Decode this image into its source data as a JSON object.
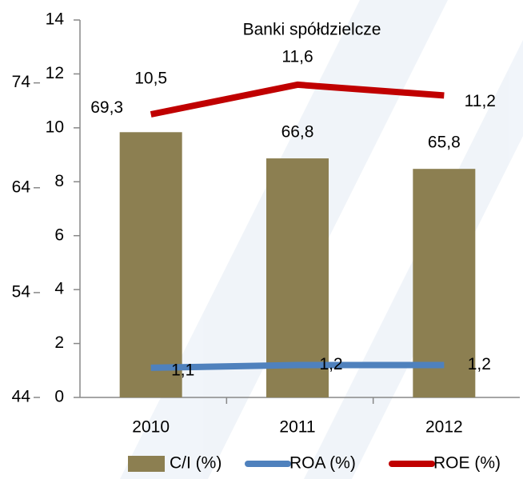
{
  "chart_data": {
    "type": "bar_line",
    "title": "Banki spółdzielcze",
    "categories": [
      "2010",
      "2011",
      "2012"
    ],
    "series": [
      {
        "name": "C/I (%)",
        "type": "bar",
        "axis": "y2",
        "color": "#8c7f51",
        "values": [
          69.3,
          66.8,
          65.8
        ],
        "value_labels": [
          "69,3",
          "66,8",
          "65,8"
        ]
      },
      {
        "name": "ROA (%)",
        "type": "line",
        "color": "#4f81bd",
        "values": [
          1.1,
          1.2,
          1.2
        ],
        "value_labels": [
          "1,1",
          "1,2",
          "1,2"
        ]
      },
      {
        "name": "ROE (%)",
        "type": "line",
        "color": "#c00000",
        "values": [
          10.5,
          11.6,
          11.2
        ],
        "value_labels": [
          "10,5",
          "11,6",
          "11,2"
        ]
      }
    ],
    "ylim": [
      0,
      14
    ],
    "yticks": [
      0,
      2,
      4,
      6,
      8,
      10,
      12,
      14
    ],
    "y2lim": [
      44,
      80
    ],
    "y2ticks": [
      44,
      54,
      64,
      74
    ],
    "legend": "bottom"
  }
}
